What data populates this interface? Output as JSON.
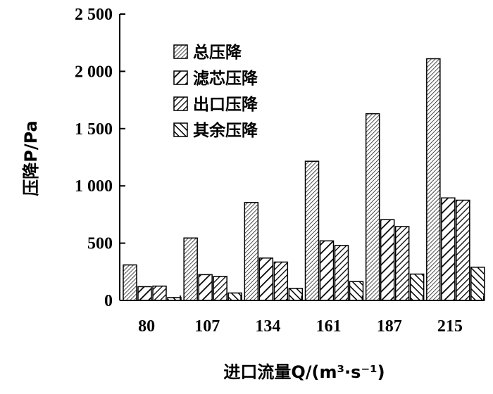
{
  "chart_data": {
    "type": "bar",
    "title": "",
    "xlabel": "进口流量Q/(m³·s⁻¹)",
    "ylabel": "压降P/Pa",
    "ylim": [
      0,
      2500
    ],
    "yticks": [
      "0",
      "500",
      "1 000",
      "1 500",
      "2 000",
      "2 500"
    ],
    "categories": [
      "80",
      "107",
      "134",
      "161",
      "187",
      "215"
    ],
    "grid": false,
    "legend_position": "top-left",
    "series": [
      {
        "name": "总压降",
        "pattern": "fine-diagonal",
        "values": [
          310,
          545,
          855,
          1215,
          1630,
          2110
        ]
      },
      {
        "name": "滤芯压降",
        "pattern": "wide-diagonal",
        "values": [
          120,
          225,
          370,
          520,
          705,
          895
        ]
      },
      {
        "name": "出口压降",
        "pattern": "medium-diagonal",
        "values": [
          125,
          210,
          335,
          480,
          645,
          875
        ]
      },
      {
        "name": "其余压降",
        "pattern": "back-diagonal",
        "values": [
          25,
          65,
          105,
          165,
          230,
          290
        ]
      }
    ]
  }
}
